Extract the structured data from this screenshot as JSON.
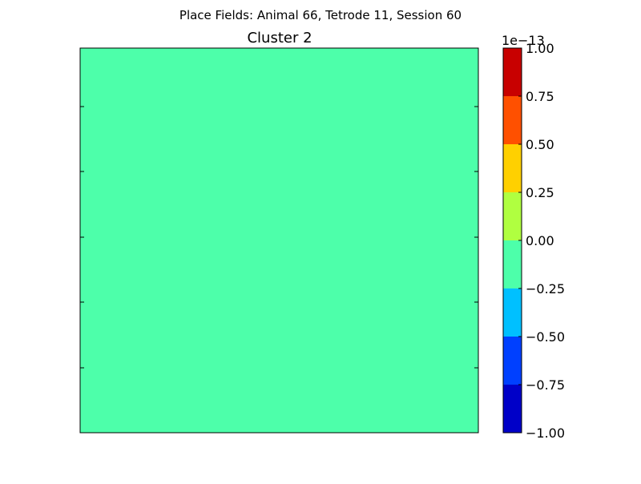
{
  "figure": {
    "suptitle": "Place Fields: Animal 66, Tetrode 11, Session 60",
    "background": "#ffffff"
  },
  "chart_data": {
    "type": "heatmap",
    "title": "Cluster 2",
    "xlabel": "",
    "ylabel": "",
    "x_ticks_labeled": false,
    "y_ticks_labeled": false,
    "grid": false,
    "z": [
      [
        0
      ]
    ],
    "field_color": "#4dffaa",
    "colorbar": {
      "position": "right",
      "offset_label": "1e−13",
      "scale_multiplier": 1e-13,
      "range": [
        -1.0,
        1.0
      ],
      "boundaries": [
        -1.0,
        -0.75,
        -0.5,
        -0.25,
        0.0,
        0.25,
        0.5,
        0.75,
        1.0
      ],
      "tick_labels": [
        "−1.00",
        "−0.75",
        "−0.50",
        "−0.25",
        "0.00",
        "0.25",
        "0.50",
        "0.75",
        "1.00"
      ],
      "colors": [
        "#0000c8",
        "#0040ff",
        "#00c0ff",
        "#4dffaa",
        "#b0ff40",
        "#ffd000",
        "#ff5000",
        "#c80000"
      ]
    }
  }
}
